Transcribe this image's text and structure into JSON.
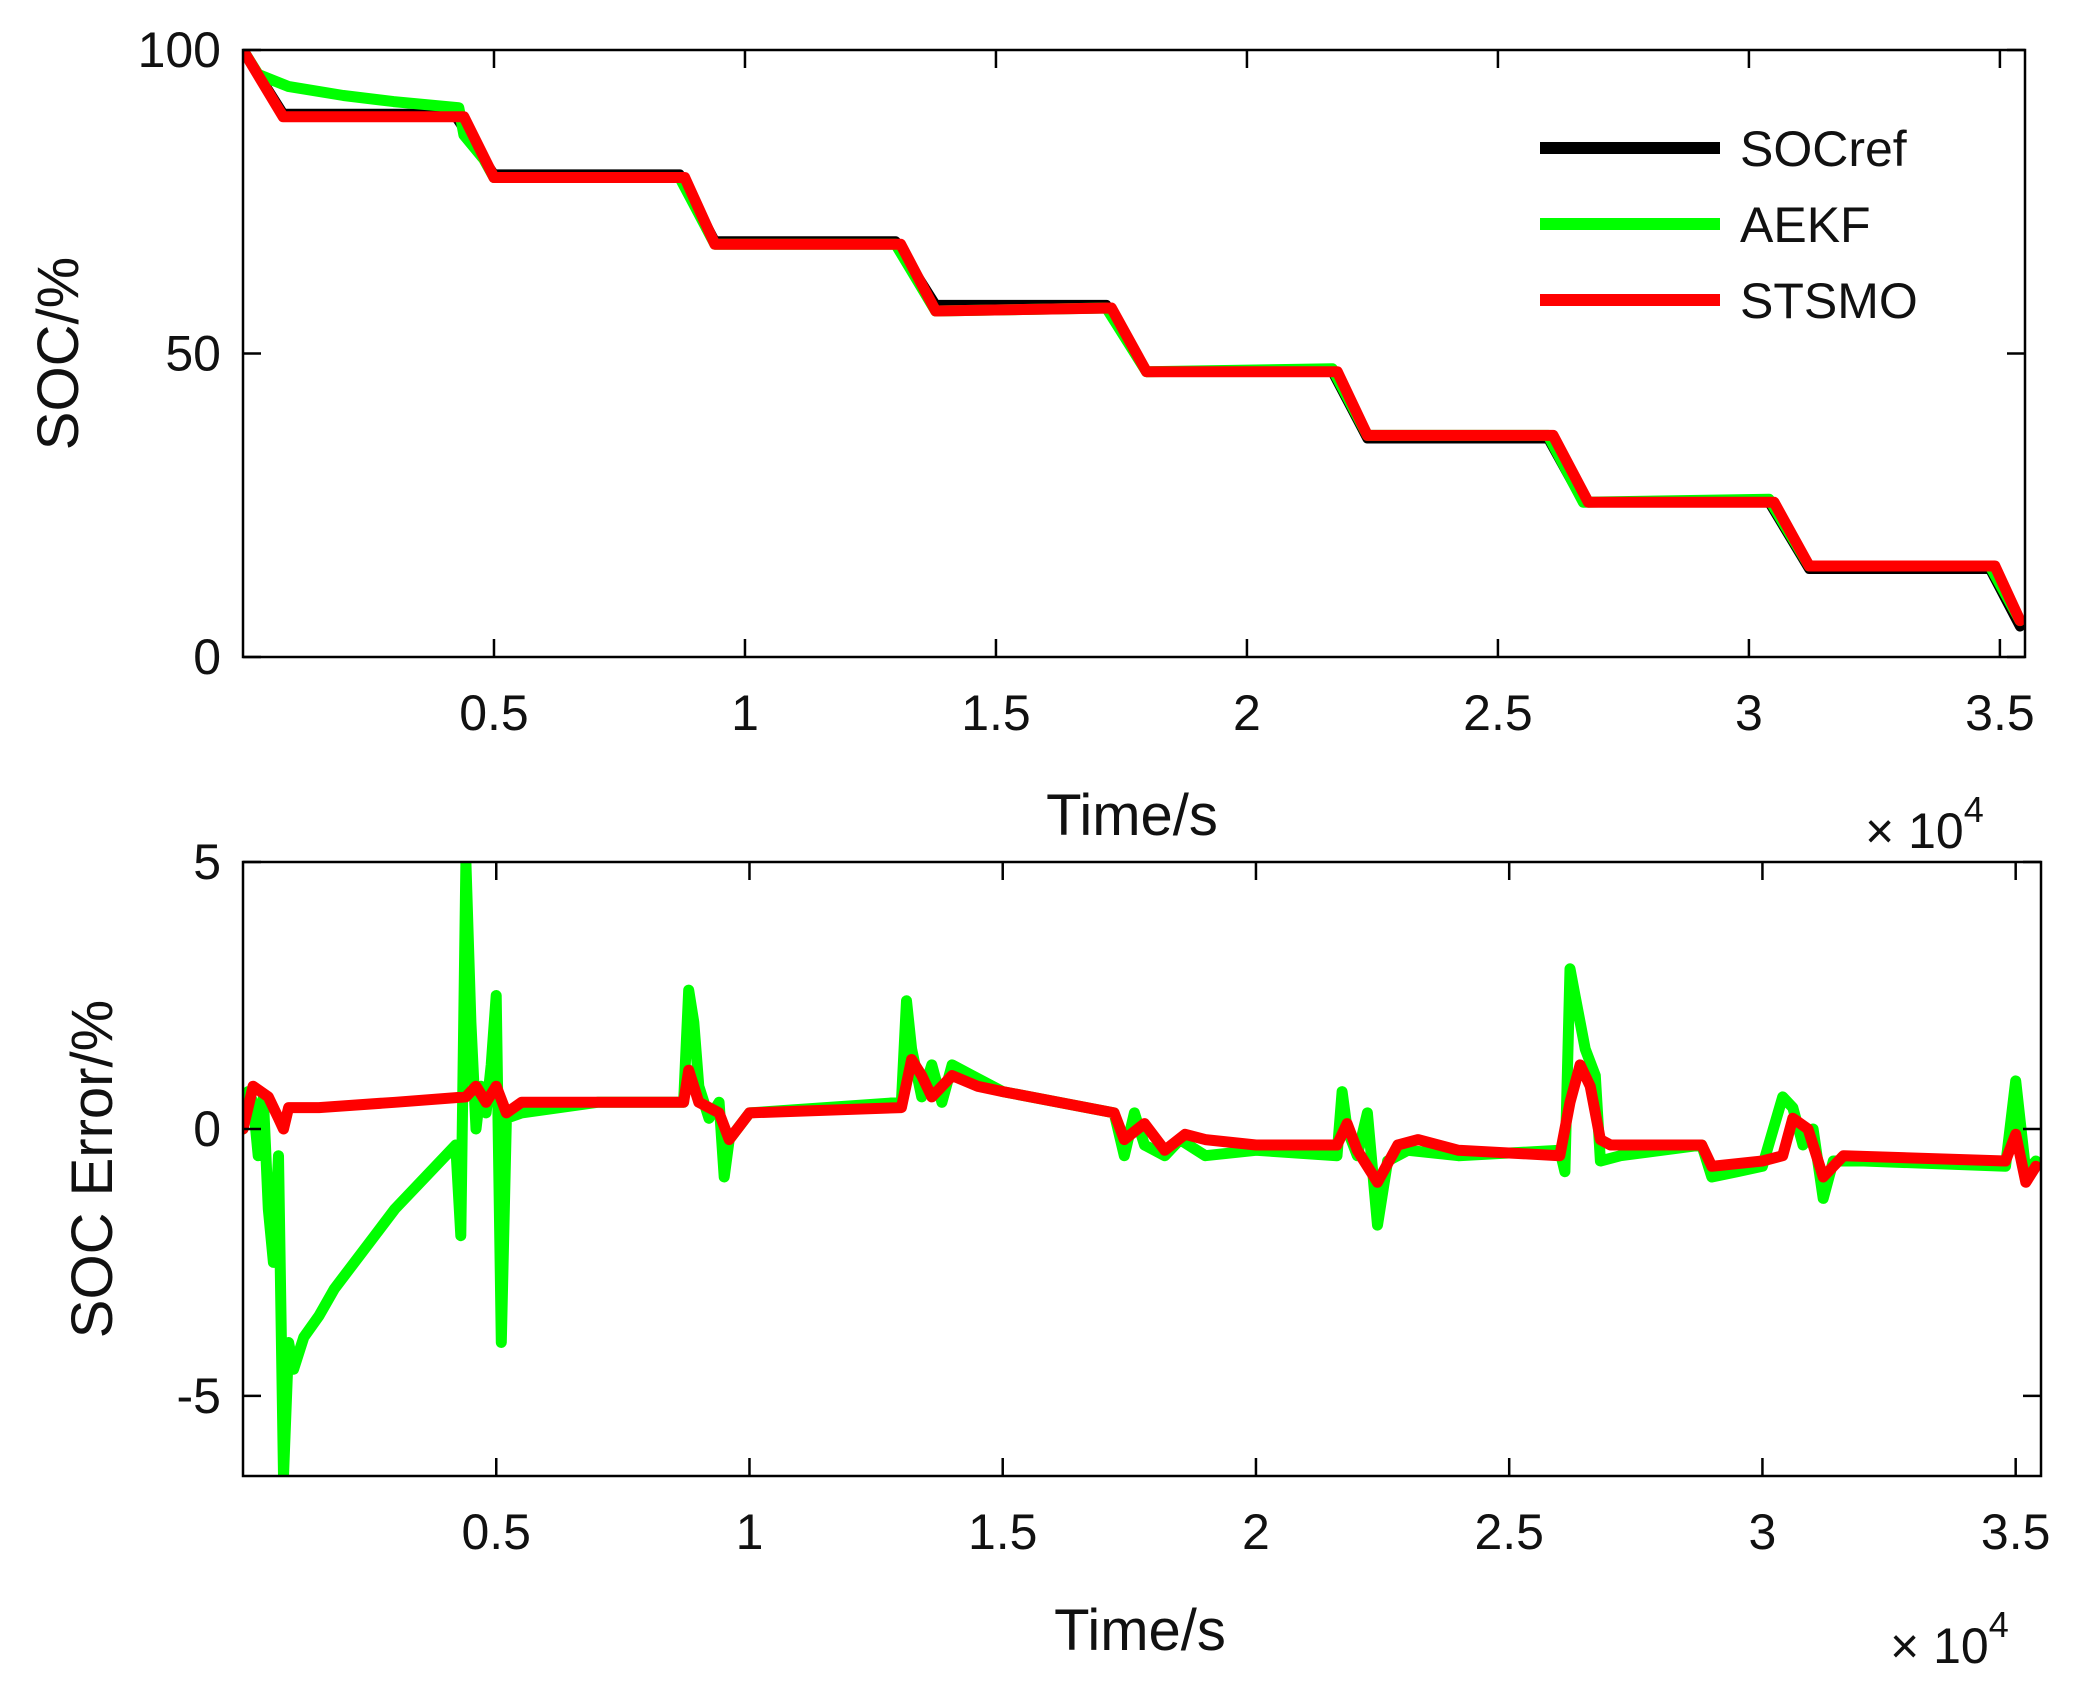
{
  "chart_data": [
    {
      "type": "line",
      "id": "soc",
      "xlabel": "Time/s",
      "ylabel": "SOC/%",
      "x_exponent_base": "× 10",
      "x_exponent_power": "4",
      "xlim": [
        0,
        3.55
      ],
      "ylim": [
        0,
        100
      ],
      "xticks": [
        0.5,
        1,
        1.5,
        2,
        2.5,
        3,
        3.5
      ],
      "xtick_labels": [
        "0.5",
        "1",
        "1.5",
        "2",
        "2.5",
        "3",
        "3.5"
      ],
      "yticks": [
        0,
        50,
        100
      ],
      "ytick_labels": [
        "0",
        "50",
        "100"
      ],
      "legend": {
        "position": "top-right"
      },
      "series": [
        {
          "name": "SOCref",
          "color": "#000000",
          "points": [
            [
              0,
              100
            ],
            [
              0.08,
              89.5
            ],
            [
              0.42,
              89.5
            ],
            [
              0.5,
              79.5
            ],
            [
              0.87,
              79.5
            ],
            [
              0.94,
              68.5
            ],
            [
              1.3,
              68.5
            ],
            [
              1.38,
              58
            ],
            [
              1.72,
              58
            ],
            [
              1.8,
              47
            ],
            [
              2.17,
              47
            ],
            [
              2.24,
              36
            ],
            [
              2.6,
              36
            ],
            [
              2.67,
              25.5
            ],
            [
              3.04,
              25.5
            ],
            [
              3.12,
              14.5
            ],
            [
              3.48,
              14.5
            ],
            [
              3.54,
              5
            ]
          ]
        },
        {
          "name": "AEKF",
          "color": "#00ff00",
          "points": [
            [
              0,
              100
            ],
            [
              0.03,
              96
            ],
            [
              0.06,
              95
            ],
            [
              0.09,
              94
            ],
            [
              0.2,
              92.5
            ],
            [
              0.3,
              91.5
            ],
            [
              0.43,
              90.5
            ],
            [
              0.44,
              86
            ],
            [
              0.46,
              84
            ],
            [
              0.48,
              82
            ],
            [
              0.5,
              79
            ],
            [
              0.87,
              79
            ],
            [
              0.94,
              68
            ],
            [
              1.3,
              68
            ],
            [
              1.38,
              57
            ],
            [
              1.72,
              57.5
            ],
            [
              1.8,
              47
            ],
            [
              2.17,
              47.5
            ],
            [
              2.24,
              36.5
            ],
            [
              2.6,
              36.5
            ],
            [
              2.67,
              25.5
            ],
            [
              3.04,
              26
            ],
            [
              3.12,
              15
            ],
            [
              3.48,
              15
            ],
            [
              3.54,
              6
            ]
          ]
        },
        {
          "name": "STSMO",
          "color": "#ff0000",
          "points": [
            [
              0,
              100
            ],
            [
              0.08,
              89
            ],
            [
              0.44,
              89
            ],
            [
              0.5,
              79
            ],
            [
              0.88,
              79
            ],
            [
              0.94,
              68
            ],
            [
              1.31,
              68
            ],
            [
              1.38,
              57
            ],
            [
              1.73,
              57.5
            ],
            [
              1.8,
              47
            ],
            [
              2.18,
              47
            ],
            [
              2.24,
              36.5
            ],
            [
              2.61,
              36.5
            ],
            [
              2.68,
              25.5
            ],
            [
              3.05,
              25.5
            ],
            [
              3.12,
              15
            ],
            [
              3.49,
              15
            ],
            [
              3.54,
              6
            ]
          ]
        }
      ]
    },
    {
      "type": "line",
      "id": "error",
      "xlabel": "Time/s",
      "ylabel": "SOC Error/%",
      "x_exponent_base": "× 10",
      "x_exponent_power": "4",
      "xlim": [
        0,
        3.55
      ],
      "ylim": [
        -6.5,
        5
      ],
      "xticks": [
        0.5,
        1,
        1.5,
        2,
        2.5,
        3,
        3.5
      ],
      "xtick_labels": [
        "0.5",
        "1",
        "1.5",
        "2",
        "2.5",
        "3",
        "3.5"
      ],
      "yticks": [
        -5,
        0,
        5
      ],
      "ytick_labels": [
        "-5",
        "0",
        "5"
      ],
      "series": [
        {
          "name": "AEKF",
          "color": "#00ff00",
          "points": [
            [
              0,
              0
            ],
            [
              0.01,
              0.7
            ],
            [
              0.02,
              0.5
            ],
            [
              0.03,
              -0.5
            ],
            [
              0.04,
              0.6
            ],
            [
              0.05,
              -1.5
            ],
            [
              0.06,
              -2.5
            ],
            [
              0.07,
              -0.5
            ],
            [
              0.08,
              -6.5
            ],
            [
              0.09,
              -4.0
            ],
            [
              0.1,
              -4.5
            ],
            [
              0.12,
              -3.9
            ],
            [
              0.15,
              -3.5
            ],
            [
              0.18,
              -3.0
            ],
            [
              0.22,
              -2.5
            ],
            [
              0.26,
              -2.0
            ],
            [
              0.3,
              -1.5
            ],
            [
              0.35,
              -1.0
            ],
            [
              0.4,
              -0.5
            ],
            [
              0.42,
              -0.3
            ],
            [
              0.43,
              -2.0
            ],
            [
              0.44,
              5.0
            ],
            [
              0.45,
              2.0
            ],
            [
              0.46,
              0.0
            ],
            [
              0.47,
              0.8
            ],
            [
              0.48,
              0.3
            ],
            [
              0.49,
              1.2
            ],
            [
              0.5,
              2.5
            ],
            [
              0.51,
              -4.0
            ],
            [
              0.52,
              0.2
            ],
            [
              0.55,
              0.3
            ],
            [
              0.7,
              0.5
            ],
            [
              0.87,
              0.5
            ],
            [
              0.88,
              2.6
            ],
            [
              0.89,
              2.0
            ],
            [
              0.9,
              0.8
            ],
            [
              0.92,
              0.2
            ],
            [
              0.94,
              0.5
            ],
            [
              0.95,
              -0.9
            ],
            [
              0.96,
              -0.2
            ],
            [
              1.0,
              0.3
            ],
            [
              1.3,
              0.5
            ],
            [
              1.31,
              2.4
            ],
            [
              1.32,
              1.5
            ],
            [
              1.34,
              0.6
            ],
            [
              1.36,
              1.2
            ],
            [
              1.38,
              0.5
            ],
            [
              1.4,
              1.2
            ],
            [
              1.44,
              1.0
            ],
            [
              1.5,
              0.7
            ],
            [
              1.72,
              0.3
            ],
            [
              1.74,
              -0.5
            ],
            [
              1.76,
              0.3
            ],
            [
              1.78,
              -0.3
            ],
            [
              1.82,
              -0.5
            ],
            [
              1.85,
              -0.2
            ],
            [
              1.9,
              -0.5
            ],
            [
              2.0,
              -0.4
            ],
            [
              2.16,
              -0.5
            ],
            [
              2.17,
              0.7
            ],
            [
              2.18,
              0.0
            ],
            [
              2.2,
              -0.5
            ],
            [
              2.22,
              0.3
            ],
            [
              2.24,
              -1.8
            ],
            [
              2.26,
              -0.6
            ],
            [
              2.3,
              -0.4
            ],
            [
              2.4,
              -0.5
            ],
            [
              2.6,
              -0.4
            ],
            [
              2.61,
              -0.8
            ],
            [
              2.62,
              3.0
            ],
            [
              2.63,
              2.5
            ],
            [
              2.65,
              1.5
            ],
            [
              2.67,
              1.0
            ],
            [
              2.68,
              -0.6
            ],
            [
              2.72,
              -0.5
            ],
            [
              2.88,
              -0.3
            ],
            [
              2.9,
              -0.9
            ],
            [
              2.95,
              -0.8
            ],
            [
              3.0,
              -0.7
            ],
            [
              3.04,
              0.6
            ],
            [
              3.06,
              0.4
            ],
            [
              3.08,
              -0.3
            ],
            [
              3.1,
              0.0
            ],
            [
              3.12,
              -1.3
            ],
            [
              3.14,
              -0.6
            ],
            [
              3.2,
              -0.6
            ],
            [
              3.48,
              -0.7
            ],
            [
              3.5,
              0.9
            ],
            [
              3.52,
              -0.8
            ],
            [
              3.54,
              -0.6
            ]
          ]
        },
        {
          "name": "STSMO",
          "color": "#ff0000",
          "points": [
            [
              0,
              0
            ],
            [
              0.02,
              0.8
            ],
            [
              0.05,
              0.6
            ],
            [
              0.07,
              0.2
            ],
            [
              0.08,
              0.0
            ],
            [
              0.09,
              0.4
            ],
            [
              0.15,
              0.4
            ],
            [
              0.3,
              0.5
            ],
            [
              0.44,
              0.6
            ],
            [
              0.46,
              0.8
            ],
            [
              0.48,
              0.5
            ],
            [
              0.5,
              0.8
            ],
            [
              0.52,
              0.3
            ],
            [
              0.55,
              0.5
            ],
            [
              0.7,
              0.5
            ],
            [
              0.87,
              0.5
            ],
            [
              0.88,
              1.1
            ],
            [
              0.9,
              0.5
            ],
            [
              0.94,
              0.3
            ],
            [
              0.96,
              -0.2
            ],
            [
              1.0,
              0.3
            ],
            [
              1.3,
              0.4
            ],
            [
              1.32,
              1.3
            ],
            [
              1.34,
              1.0
            ],
            [
              1.36,
              0.6
            ],
            [
              1.4,
              1.0
            ],
            [
              1.45,
              0.8
            ],
            [
              1.5,
              0.7
            ],
            [
              1.72,
              0.3
            ],
            [
              1.74,
              -0.2
            ],
            [
              1.78,
              0.1
            ],
            [
              1.82,
              -0.4
            ],
            [
              1.86,
              -0.1
            ],
            [
              1.9,
              -0.2
            ],
            [
              2.0,
              -0.3
            ],
            [
              2.16,
              -0.3
            ],
            [
              2.18,
              0.1
            ],
            [
              2.2,
              -0.4
            ],
            [
              2.24,
              -1.0
            ],
            [
              2.28,
              -0.3
            ],
            [
              2.32,
              -0.2
            ],
            [
              2.4,
              -0.4
            ],
            [
              2.6,
              -0.5
            ],
            [
              2.62,
              0.5
            ],
            [
              2.64,
              1.2
            ],
            [
              2.66,
              0.8
            ],
            [
              2.68,
              -0.2
            ],
            [
              2.7,
              -0.3
            ],
            [
              2.88,
              -0.3
            ],
            [
              2.9,
              -0.7
            ],
            [
              3.0,
              -0.6
            ],
            [
              3.04,
              -0.5
            ],
            [
              3.06,
              0.2
            ],
            [
              3.09,
              0.0
            ],
            [
              3.12,
              -0.9
            ],
            [
              3.16,
              -0.5
            ],
            [
              3.48,
              -0.6
            ],
            [
              3.5,
              -0.1
            ],
            [
              3.52,
              -1.0
            ],
            [
              3.54,
              -0.7
            ]
          ]
        }
      ]
    }
  ]
}
